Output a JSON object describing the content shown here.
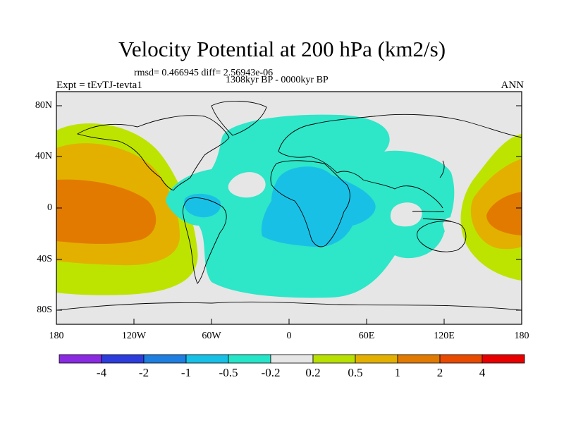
{
  "title": "Velocity Potential at 200 hPa (km2/s)",
  "subtitle": {
    "rmsd": "rmsd= 0.466945 diff= 2.56943e-06",
    "period": "1308kyr BP - 0000kyr BP"
  },
  "left_label": "Expt = tEvTJ-tevta1",
  "right_label": "ANN",
  "lat_labels": [
    "80N",
    "40N",
    "0",
    "40S",
    "80S"
  ],
  "lon_labels": [
    "180",
    "120W",
    "60W",
    "0",
    "60E",
    "120E",
    "180"
  ],
  "colorbar": {
    "labels": [
      "-4",
      "-2",
      "-1",
      "-0.5",
      "-0.2",
      "0.2",
      "0.5",
      "1",
      "2",
      "4"
    ],
    "colors": [
      "#8a2be2",
      "#2c3ddc",
      "#1f7fe0",
      "#17c0e6",
      "#25e5c9",
      "#e6e6e6",
      "#b8e000",
      "#e3b000",
      "#e07a00",
      "#e84a00",
      "#e80000"
    ]
  },
  "contour_colors": {
    "neutral": "#e6e6e6",
    "weak_negative": "#2ee6c8",
    "negative": "#19c0e6",
    "weak_positive": "#bde400",
    "positive": "#e3b000",
    "strong_positive": "#e37a00",
    "coast": "#000000"
  }
}
